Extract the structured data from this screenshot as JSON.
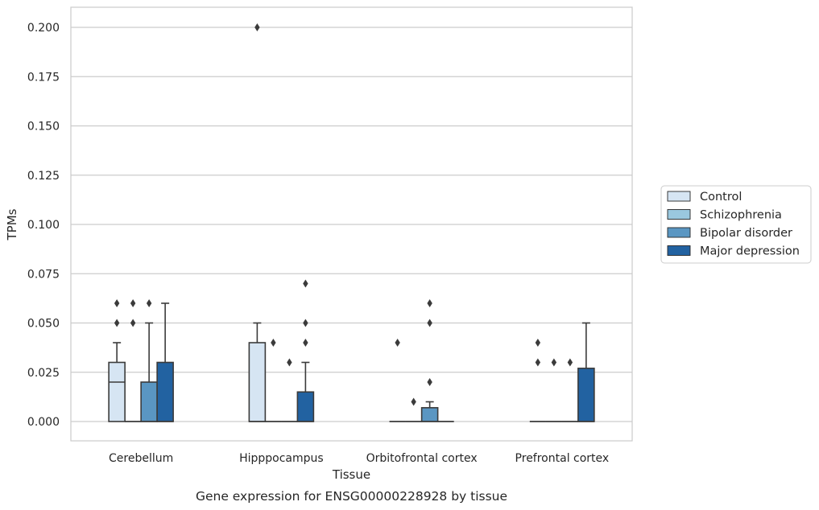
{
  "chart_data": {
    "type": "box",
    "caption": "Gene expression for ENSG00000228928 by tissue",
    "xlabel": "Tissue",
    "ylabel": "TPMs",
    "ylim": [
      -0.01,
      0.21
    ],
    "yticks": [
      "0.000",
      "0.025",
      "0.050",
      "0.075",
      "0.100",
      "0.125",
      "0.150",
      "0.175",
      "0.200"
    ],
    "grid": "horizontal",
    "legend_placement": "right",
    "categories": [
      "Cerebellum",
      "Hipppocampus",
      "Orbitofrontal cortex",
      "Prefrontal cortex"
    ],
    "series": [
      {
        "name": "Control",
        "color": "#d6e5f3",
        "boxes": [
          {
            "q1": 0.0,
            "median": 0.02,
            "q3": 0.03,
            "whisker_low": 0.0,
            "whisker_high": 0.04,
            "outliers": [
              0.05,
              0.06
            ]
          },
          {
            "q1": 0.0,
            "median": 0.0,
            "q3": 0.04,
            "whisker_low": 0.0,
            "whisker_high": 0.05,
            "outliers": [
              0.2
            ]
          },
          {
            "q1": 0.0,
            "median": 0.0,
            "q3": 0.0,
            "whisker_low": 0.0,
            "whisker_high": 0.0,
            "outliers": [
              0.04
            ]
          },
          {
            "q1": 0.0,
            "median": 0.0,
            "q3": 0.0,
            "whisker_low": 0.0,
            "whisker_high": 0.0,
            "outliers": [
              0.03,
              0.04
            ]
          }
        ]
      },
      {
        "name": "Schizophrenia",
        "color": "#9ac8df",
        "boxes": [
          {
            "q1": 0.0,
            "median": 0.0,
            "q3": 0.0,
            "whisker_low": 0.0,
            "whisker_high": 0.0,
            "outliers": [
              0.05,
              0.06
            ]
          },
          {
            "q1": 0.0,
            "median": 0.0,
            "q3": 0.0,
            "whisker_low": 0.0,
            "whisker_high": 0.0,
            "outliers": [
              0.04
            ]
          },
          {
            "q1": 0.0,
            "median": 0.0,
            "q3": 0.0,
            "whisker_low": 0.0,
            "whisker_high": 0.0,
            "outliers": [
              0.01
            ]
          },
          {
            "q1": 0.0,
            "median": 0.0,
            "q3": 0.0,
            "whisker_low": 0.0,
            "whisker_high": 0.0,
            "outliers": [
              0.03
            ]
          }
        ]
      },
      {
        "name": "Bipolar disorder",
        "color": "#5a96c2",
        "boxes": [
          {
            "q1": 0.0,
            "median": 0.0,
            "q3": 0.02,
            "whisker_low": 0.0,
            "whisker_high": 0.05,
            "outliers": [
              0.06
            ]
          },
          {
            "q1": 0.0,
            "median": 0.0,
            "q3": 0.0,
            "whisker_low": 0.0,
            "whisker_high": 0.0,
            "outliers": [
              0.03
            ]
          },
          {
            "q1": 0.0,
            "median": 0.0,
            "q3": 0.007,
            "whisker_low": 0.0,
            "whisker_high": 0.01,
            "outliers": [
              0.02,
              0.05,
              0.06
            ]
          },
          {
            "q1": 0.0,
            "median": 0.0,
            "q3": 0.0,
            "whisker_low": 0.0,
            "whisker_high": 0.0,
            "outliers": [
              0.03
            ]
          }
        ]
      },
      {
        "name": "Major depression",
        "color": "#2262a1",
        "boxes": [
          {
            "q1": 0.0,
            "median": 0.0,
            "q3": 0.03,
            "whisker_low": 0.0,
            "whisker_high": 0.06,
            "outliers": []
          },
          {
            "q1": 0.0,
            "median": 0.0,
            "q3": 0.015,
            "whisker_low": 0.0,
            "whisker_high": 0.03,
            "outliers": [
              0.04,
              0.05,
              0.07
            ]
          },
          {
            "q1": 0.0,
            "median": 0.0,
            "q3": 0.0,
            "whisker_low": 0.0,
            "whisker_high": 0.0,
            "outliers": []
          },
          {
            "q1": 0.0,
            "median": 0.0,
            "q3": 0.027,
            "whisker_low": 0.0,
            "whisker_high": 0.05,
            "outliers": []
          }
        ]
      }
    ]
  }
}
